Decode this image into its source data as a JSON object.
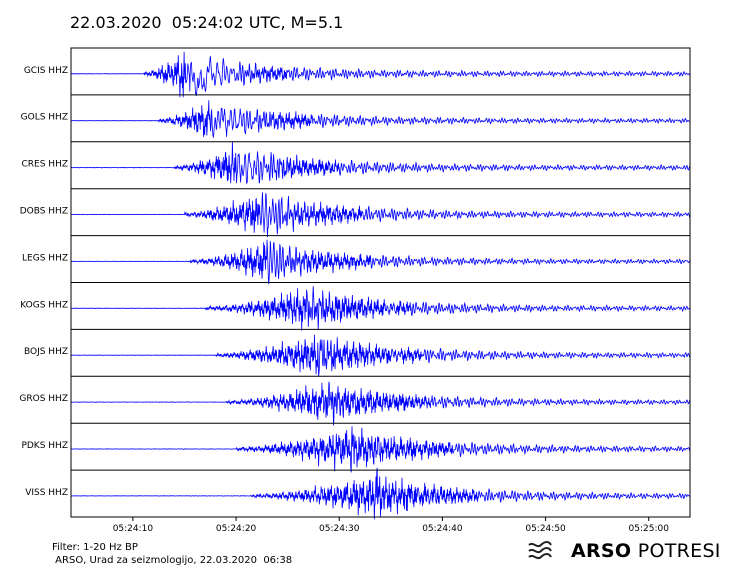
{
  "page": {
    "title": "22.03.2020  05:24:02 UTC, M=5.1",
    "footer_filter": "Filter: 1-20 Hz BP",
    "footer_org": " ARSO, Urad za seizmologijo, 22.03.2020  06:38",
    "brand_bold": "ARSO",
    "brand_light": " POTRESI",
    "brand_icon": "seismo-wave-icon"
  },
  "chart_data": {
    "type": "line",
    "title": "22.03.2020  05:24:02 UTC, M=5.1",
    "xlabel": "",
    "ylabel": "",
    "x_ticks": [
      "05:24:10",
      "05:24:20",
      "05:24:30",
      "05:24:40",
      "05:24:50",
      "05:25:00"
    ],
    "x_tick_seconds": [
      10,
      20,
      30,
      40,
      50,
      60
    ],
    "xlim": [
      4,
      64
    ],
    "grid": false,
    "trace_color": "#0000ff",
    "series": [
      {
        "name": "GCIS HHZ",
        "p_onset_s": 11.0,
        "peak_s": 15.0,
        "amplitude": 1.0
      },
      {
        "name": "GOLS HHZ",
        "p_onset_s": 12.5,
        "peak_s": 17.5,
        "amplitude": 0.95
      },
      {
        "name": "CRES HHZ",
        "p_onset_s": 14.0,
        "peak_s": 20.0,
        "amplitude": 1.0
      },
      {
        "name": "DOBS HHZ",
        "p_onset_s": 15.0,
        "peak_s": 22.5,
        "amplitude": 1.0
      },
      {
        "name": "LEGS HHZ",
        "p_onset_s": 15.5,
        "peak_s": 23.0,
        "amplitude": 0.9
      },
      {
        "name": "KOGS HHZ",
        "p_onset_s": 17.0,
        "peak_s": 27.0,
        "amplitude": 0.95
      },
      {
        "name": "BOJS HHZ",
        "p_onset_s": 18.0,
        "peak_s": 28.0,
        "amplitude": 0.95
      },
      {
        "name": "GROS HHZ",
        "p_onset_s": 19.0,
        "peak_s": 29.0,
        "amplitude": 0.9
      },
      {
        "name": "PDKS HHZ",
        "p_onset_s": 20.0,
        "peak_s": 31.0,
        "amplitude": 1.0
      },
      {
        "name": "VISS HHZ",
        "p_onset_s": 21.5,
        "peak_s": 33.5,
        "amplitude": 0.95
      }
    ]
  }
}
